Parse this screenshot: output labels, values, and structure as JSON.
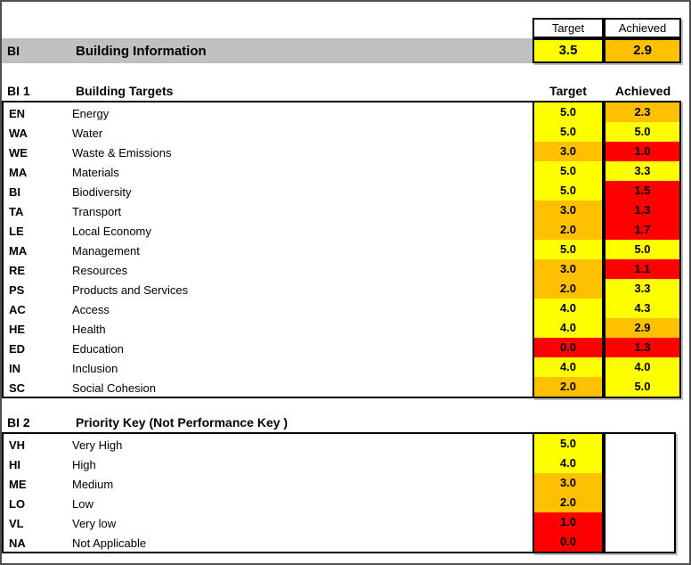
{
  "colors": {
    "yellow": "#FFFF00",
    "orange": "#FFC000",
    "red": "#FF0000",
    "gray": "#C0C0C0"
  },
  "summary": {
    "target_header": "Target",
    "achieved_header": "Achieved",
    "code": "BI",
    "title": "Building Information",
    "target": "3.5",
    "target_color": "yellow",
    "achieved": "2.9",
    "achieved_color": "orange"
  },
  "sections": [
    {
      "code": "BI 1",
      "title": "Building Targets",
      "target_header": "Target",
      "achieved_header": "Achieved",
      "rows": [
        {
          "code": "EN",
          "label": "Energy",
          "target": "5.0",
          "target_color": "yellow",
          "achieved": "2.3",
          "achieved_color": "orange"
        },
        {
          "code": "WA",
          "label": "Water",
          "target": "5.0",
          "target_color": "yellow",
          "achieved": "5.0",
          "achieved_color": "yellow"
        },
        {
          "code": "WE",
          "label": "Waste & Emissions",
          "target": "3.0",
          "target_color": "orange",
          "achieved": "1.0",
          "achieved_color": "red"
        },
        {
          "code": "MA",
          "label": "Materials",
          "target": "5.0",
          "target_color": "yellow",
          "achieved": "3.3",
          "achieved_color": "yellow"
        },
        {
          "code": "BI",
          "label": "Biodiversity",
          "target": "5.0",
          "target_color": "yellow",
          "achieved": "1.5",
          "achieved_color": "red"
        },
        {
          "code": "TA",
          "label": "Transport",
          "target": "3.0",
          "target_color": "orange",
          "achieved": "1.3",
          "achieved_color": "red"
        },
        {
          "code": "LE",
          "label": "Local Economy",
          "target": "2.0",
          "target_color": "orange",
          "achieved": "1.7",
          "achieved_color": "red"
        },
        {
          "code": "MA",
          "label": "Management",
          "target": "5.0",
          "target_color": "yellow",
          "achieved": "5.0",
          "achieved_color": "yellow"
        },
        {
          "code": "RE",
          "label": "Resources",
          "target": "3.0",
          "target_color": "orange",
          "achieved": "1.1",
          "achieved_color": "red"
        },
        {
          "code": "PS",
          "label": "Products and Services",
          "target": "2.0",
          "target_color": "orange",
          "achieved": "3.3",
          "achieved_color": "yellow"
        },
        {
          "code": "AC",
          "label": "Access",
          "target": "4.0",
          "target_color": "yellow",
          "achieved": "4.3",
          "achieved_color": "yellow"
        },
        {
          "code": "HE",
          "label": "Health",
          "target": "4.0",
          "target_color": "yellow",
          "achieved": "2.9",
          "achieved_color": "orange"
        },
        {
          "code": "ED",
          "label": "Education",
          "target": "0.0",
          "target_color": "red",
          "achieved": "1.3",
          "achieved_color": "red"
        },
        {
          "code": "IN",
          "label": "Inclusion",
          "target": "4.0",
          "target_color": "yellow",
          "achieved": "4.0",
          "achieved_color": "yellow"
        },
        {
          "code": "SC",
          "label": "Social Cohesion",
          "target": "2.0",
          "target_color": "orange",
          "achieved": "5.0",
          "achieved_color": "yellow"
        }
      ]
    },
    {
      "code": "BI 2",
      "title": "Priority Key (Not Performance Key )",
      "rows": [
        {
          "code": "VH",
          "label": "Very High",
          "target": "5.0",
          "target_color": "yellow"
        },
        {
          "code": "HI",
          "label": "High",
          "target": "4.0",
          "target_color": "yellow"
        },
        {
          "code": "ME",
          "label": "Medium",
          "target": "3.0",
          "target_color": "orange"
        },
        {
          "code": "LO",
          "label": "Low",
          "target": "2.0",
          "target_color": "orange"
        },
        {
          "code": "VL",
          "label": "Very low",
          "target": "1.0",
          "target_color": "red"
        },
        {
          "code": "NA",
          "label": "Not Applicable",
          "target": "0.0",
          "target_color": "red"
        }
      ]
    }
  ]
}
